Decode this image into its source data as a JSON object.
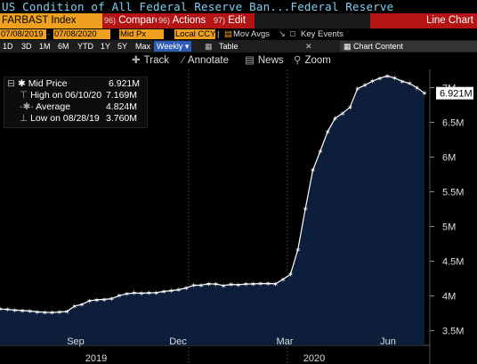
{
  "title": "US Condition of All Federal Reserve Ban...Federal Reserve",
  "toolbar": {
    "ticker": "FARBAST Index",
    "compare_num": "96)",
    "compare_label": "Compare",
    "actions_num": "96)",
    "actions_label": "Actions",
    "edit_num": "97)",
    "edit_label": "Edit",
    "chart_type": "Line Chart"
  },
  "settings": {
    "start_date": "07/08/2019",
    "end_date": "07/08/2020",
    "price_field": "Mid Px",
    "currency": "Local CCY",
    "mov_avgs": "Mov Avgs",
    "key_events": "Key Events"
  },
  "periods": [
    "1D",
    "3D",
    "1M",
    "6M",
    "YTD",
    "1Y",
    "5Y",
    "Max"
  ],
  "frequency": "Weekly",
  "table_label": "Table",
  "chart_content_label": "Chart Content",
  "tools": {
    "track": "Track",
    "annotate": "Annotate",
    "news": "News",
    "zoom": "Zoom"
  },
  "legend": {
    "mid_label": "Mid Price",
    "mid_value": "6.921M",
    "high_label": "High on 06/10/20",
    "high_value": "7.169M",
    "avg_label": "Average",
    "avg_value": "4.824M",
    "low_label": "Low on 08/28/19",
    "low_value": "3.760M"
  },
  "last_value_label": "6.921M",
  "colors": {
    "fill": "#0c1e3a",
    "line": "#ffffff",
    "orange": "#f0a020",
    "red": "#b41414",
    "accent": "#2d5bb5"
  },
  "chart_data": {
    "type": "area",
    "unit": "M",
    "y_ticks": [
      "3.5M",
      "4M",
      "4.5M",
      "5M",
      "5.5M",
      "6M",
      "6.5M",
      "7M"
    ],
    "ylim": [
      3.5,
      7.2
    ],
    "x_month_labels": [
      "Sep",
      "Dec",
      "Mar",
      "Jun"
    ],
    "x_year_labels": [
      "2019",
      "2020"
    ],
    "values": [
      3.812,
      3.805,
      3.796,
      3.79,
      3.782,
      3.771,
      3.765,
      3.76,
      3.769,
      3.776,
      3.854,
      3.877,
      3.93,
      3.945,
      3.95,
      3.96,
      4.004,
      4.031,
      4.042,
      4.04,
      4.043,
      4.048,
      4.065,
      4.075,
      4.09,
      4.115,
      4.152,
      4.157,
      4.175,
      4.17,
      4.15,
      4.165,
      4.162,
      4.17,
      4.175,
      4.178,
      4.179,
      4.175,
      4.24,
      4.312,
      4.666,
      5.254,
      5.812,
      6.083,
      6.368,
      6.56,
      6.631,
      6.72,
      6.985,
      7.037,
      7.093,
      7.137,
      7.169,
      7.138,
      7.092,
      7.061,
      6.999,
      6.921
    ]
  }
}
